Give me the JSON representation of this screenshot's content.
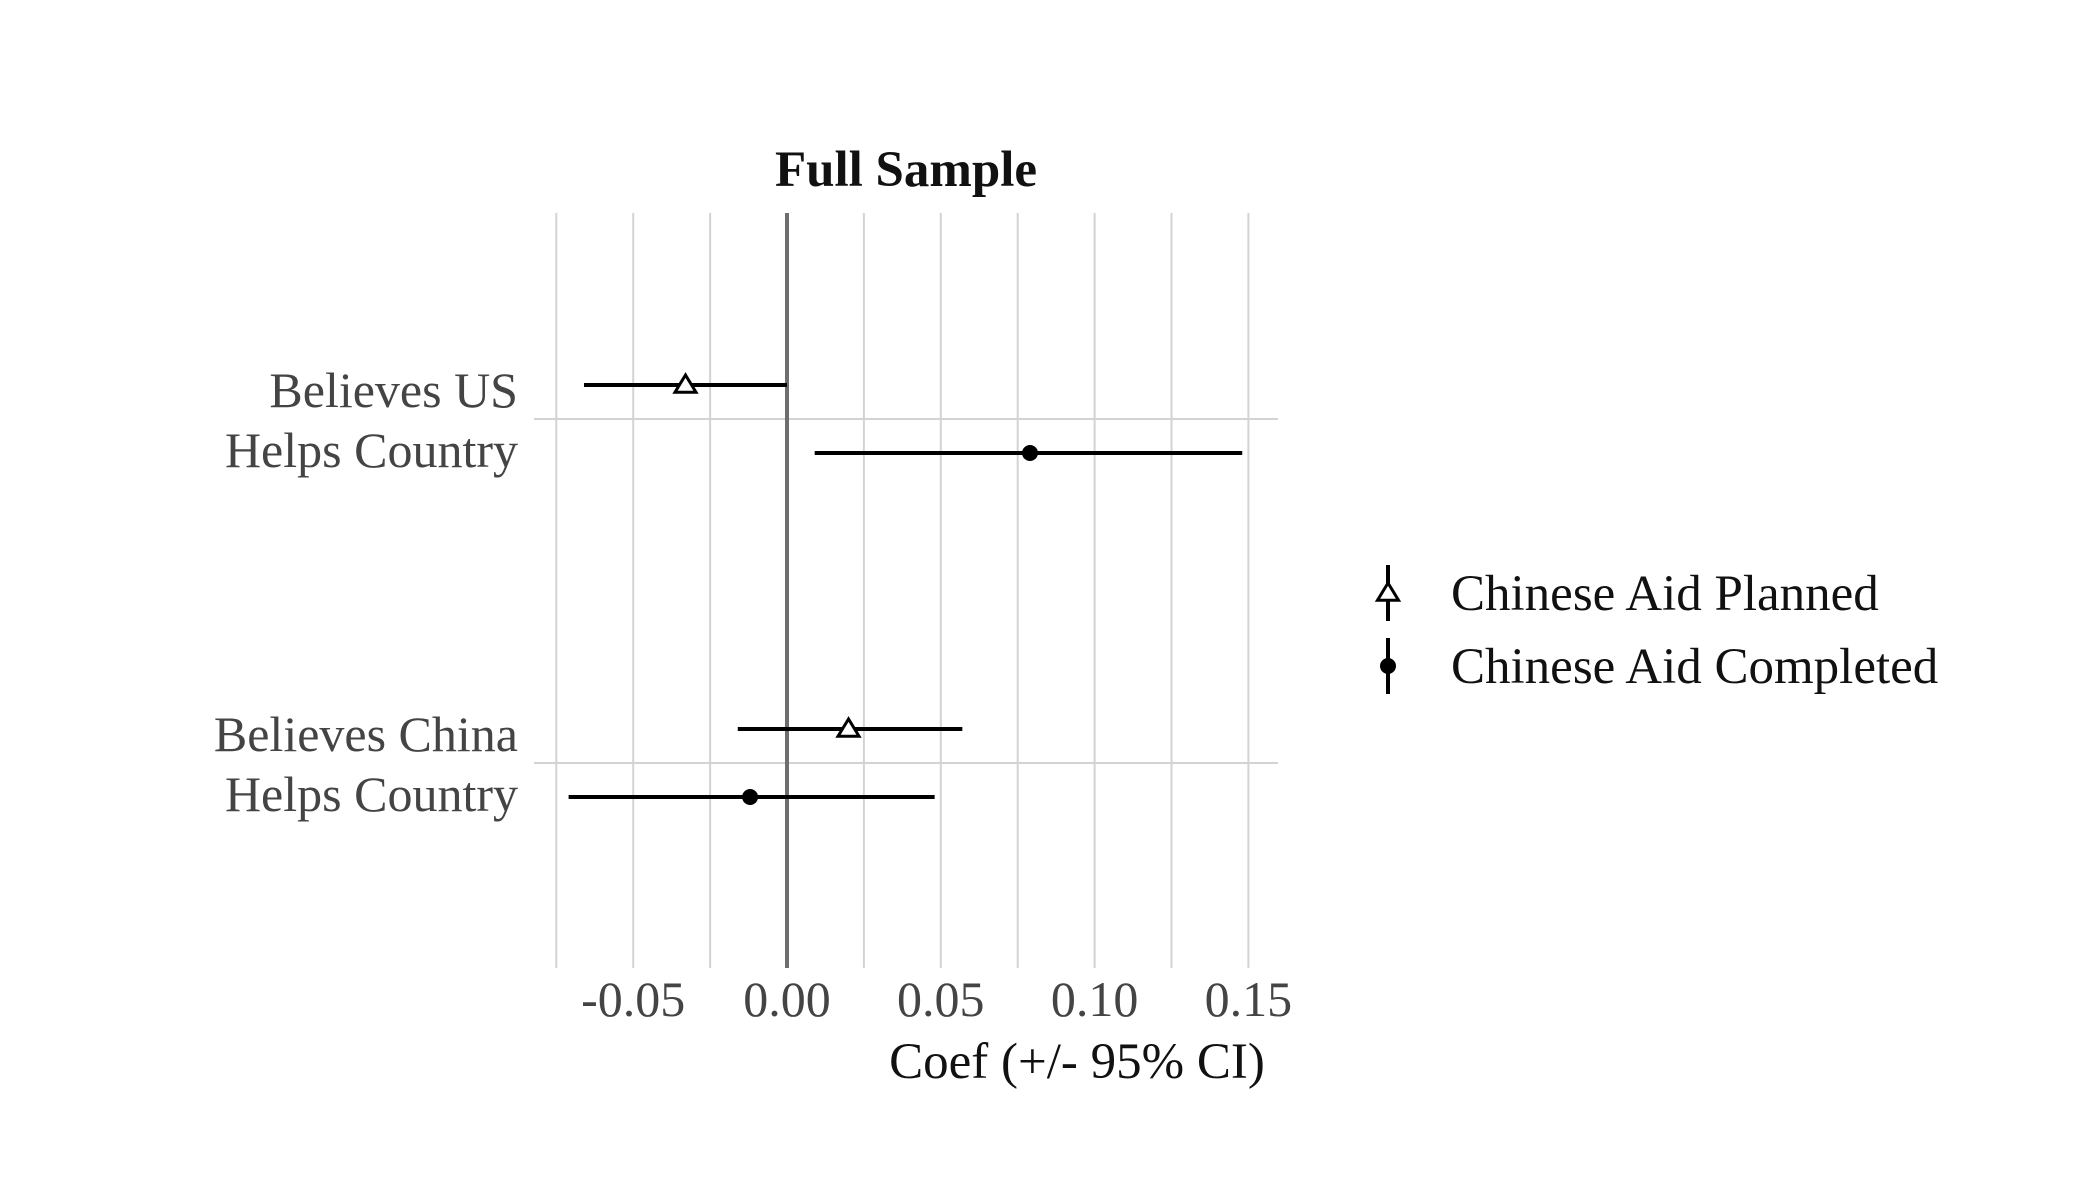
{
  "chart_data": {
    "type": "coefficient-plot",
    "title": "Full Sample",
    "xlabel": "Coef (+/- 95% CI)",
    "ylabel": "",
    "xlim": [
      -0.075,
      0.16
    ],
    "x_ticks": [
      -0.05,
      0.0,
      0.05,
      0.1,
      0.15
    ],
    "x_tick_labels": [
      "-0.05",
      "0.00",
      "0.05",
      "0.10",
      "0.15"
    ],
    "reference_line": 0,
    "grid": true,
    "legend_position": "right",
    "categories": [
      [
        "Believes US",
        "Helps Country"
      ],
      [
        "Believes China",
        "Helps Country"
      ]
    ],
    "series": [
      {
        "name": "Chinese Aid Planned",
        "marker": "open-triangle",
        "points": [
          {
            "estimate": -0.033,
            "ci_low": -0.066,
            "ci_high": 0.0
          },
          {
            "estimate": 0.02,
            "ci_low": -0.016,
            "ci_high": 0.057
          }
        ]
      },
      {
        "name": "Chinese Aid Completed",
        "marker": "filled-circle",
        "points": [
          {
            "estimate": 0.079,
            "ci_low": 0.009,
            "ci_high": 0.148
          },
          {
            "estimate": -0.012,
            "ci_low": -0.071,
            "ci_high": 0.048
          }
        ]
      }
    ]
  }
}
